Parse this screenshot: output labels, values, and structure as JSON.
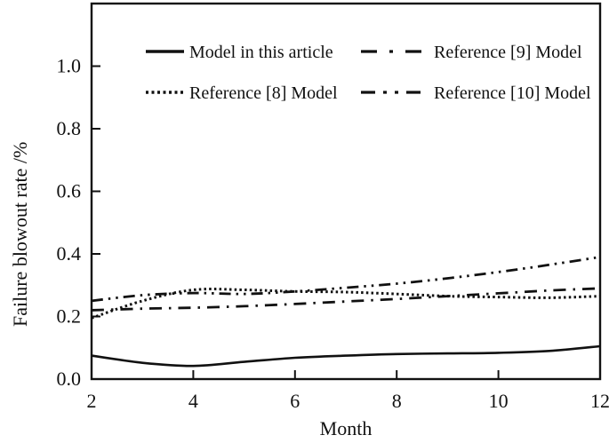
{
  "figure": {
    "background_color": "#ffffff",
    "ink_color": "#111111"
  },
  "chart_data": {
    "type": "line",
    "title": "",
    "xlabel": "Month",
    "ylabel": "Failure blowout rate /%",
    "xlim": [
      2,
      12
    ],
    "ylim": [
      0,
      1.2
    ],
    "x_ticks": [
      2,
      4,
      6,
      8,
      10,
      12
    ],
    "y_ticks": [
      "0.0",
      "0.2",
      "0.4",
      "0.6",
      "0.8",
      "1.0"
    ],
    "y_tick_values": [
      0,
      0.2,
      0.4,
      0.6,
      0.8,
      1.0
    ],
    "grid": false,
    "legend_position": "inside-top",
    "x": [
      2,
      3,
      4,
      5,
      6,
      7,
      8,
      9,
      10,
      11,
      12
    ],
    "series": [
      {
        "name": "Model in this article",
        "line_style": "solid",
        "values": [
          0.075,
          0.052,
          0.042,
          0.055,
          0.068,
          0.075,
          0.08,
          0.082,
          0.084,
          0.09,
          0.105
        ]
      },
      {
        "name": "Reference [8] Model",
        "line_style": "dotted",
        "values": [
          0.195,
          0.25,
          0.285,
          0.285,
          0.28,
          0.278,
          0.272,
          0.265,
          0.262,
          0.26,
          0.265
        ]
      },
      {
        "name": "Reference [9] Model",
        "line_style": "dash-dot",
        "values": [
          0.22,
          0.225,
          0.228,
          0.233,
          0.24,
          0.248,
          0.256,
          0.265,
          0.274,
          0.283,
          0.29
        ]
      },
      {
        "name": "Reference [10] Model",
        "line_style": "dash-dot-dot",
        "values": [
          0.25,
          0.268,
          0.275,
          0.272,
          0.28,
          0.292,
          0.305,
          0.322,
          0.342,
          0.365,
          0.39
        ]
      }
    ],
    "legend_rows": [
      [
        0,
        2
      ],
      [
        1,
        3
      ]
    ]
  }
}
